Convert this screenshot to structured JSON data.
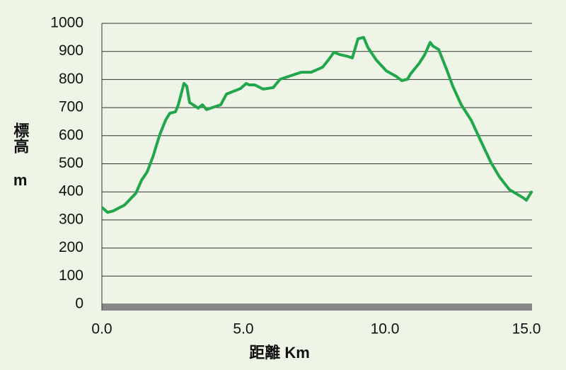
{
  "chart_data": {
    "type": "line",
    "xlabel": "距離 Km",
    "ylabel": "標高 m",
    "color": "#21a64b",
    "grid": true,
    "xlim": [
      0,
      15.2
    ],
    "ylim": [
      0,
      1000
    ],
    "xticks": [
      {
        "value": 0,
        "label": "0.0"
      },
      {
        "value": 5,
        "label": "5.0"
      },
      {
        "value": 10,
        "label": "10.0"
      },
      {
        "value": 15,
        "label": "15.0"
      }
    ],
    "yticks": [
      0,
      100,
      200,
      300,
      400,
      500,
      600,
      700,
      800,
      900,
      1000
    ],
    "x": [
      0,
      0.2,
      0.4,
      0.8,
      1.2,
      1.4,
      1.6,
      1.8,
      2.05,
      2.25,
      2.4,
      2.6,
      2.7,
      2.9,
      3.0,
      3.1,
      3.3,
      3.4,
      3.55,
      3.7,
      3.9,
      4.2,
      4.4,
      4.7,
      4.9,
      5.1,
      5.2,
      5.4,
      5.7,
      6.05,
      6.3,
      6.6,
      7.05,
      7.4,
      7.8,
      8.0,
      8.2,
      8.4,
      8.7,
      8.85,
      9.05,
      9.25,
      9.4,
      9.7,
      10.05,
      10.4,
      10.6,
      10.8,
      10.9,
      11.2,
      11.4,
      11.6,
      11.7,
      11.9,
      12.2,
      12.4,
      12.7,
      13.05,
      13.4,
      13.75,
      14.05,
      14.4,
      14.9,
      15.0,
      15.2
    ],
    "values": [
      345,
      327,
      332,
      353,
      395,
      441,
      471,
      524,
      605,
      655,
      680,
      685,
      710,
      786,
      776,
      718,
      705,
      698,
      710,
      693,
      700,
      710,
      748,
      760,
      768,
      786,
      781,
      781,
      766,
      771,
      801,
      811,
      826,
      826,
      844,
      869,
      897,
      889,
      882,
      877,
      945,
      950,
      914,
      869,
      831,
      811,
      796,
      801,
      819,
      856,
      887,
      932,
      919,
      907,
      831,
      776,
      710,
      655,
      579,
      504,
      453,
      408,
      378,
      370,
      403
    ]
  }
}
